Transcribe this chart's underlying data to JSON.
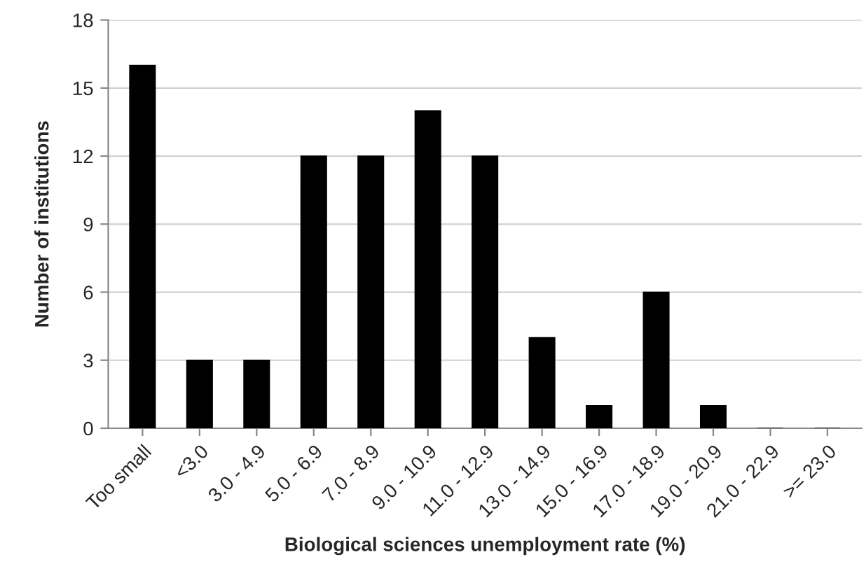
{
  "chart_data": {
    "type": "bar",
    "xlabel": "Biological sciences unemployment rate (%)",
    "ylabel": "Number of institutions",
    "categories": [
      "Too small",
      "<3.0",
      "3.0 - 4.9",
      "5.0 - 6.9",
      "7.0 - 8.9",
      "9.0 - 10.9",
      "11.0 - 12.9",
      "13.0 - 14.9",
      "15.0 - 16.9",
      "17.0 - 18.9",
      "19.0 - 20.9",
      "21.0 - 22.9",
      ">= 23.0"
    ],
    "values": [
      16,
      3,
      3,
      12,
      12,
      14,
      12,
      4,
      1,
      6,
      1,
      0,
      0
    ],
    "color": "#000000",
    "ylim": [
      0,
      18
    ],
    "yticks": [
      0,
      3,
      6,
      9,
      12,
      15,
      18
    ],
    "grid": "y",
    "legend": false
  }
}
